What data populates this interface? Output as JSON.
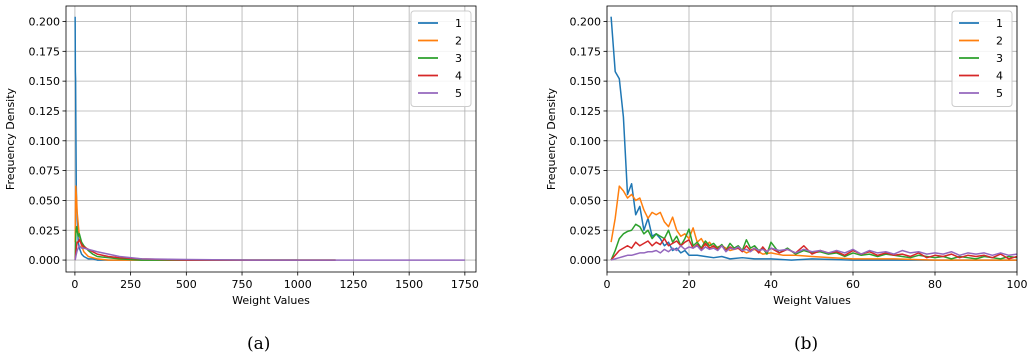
{
  "chart_data": [
    {
      "type": "line",
      "caption": "(a)",
      "xlabel": "Weight Values",
      "ylabel": "Frequency Density",
      "xlim": [
        -40,
        1800
      ],
      "ylim": [
        -0.01,
        0.213
      ],
      "xticks": [
        0,
        250,
        500,
        750,
        1000,
        1250,
        1500,
        1750
      ],
      "yticks": [
        0.0,
        0.025,
        0.05,
        0.075,
        0.1,
        0.125,
        0.15,
        0.175,
        0.2
      ],
      "grid": true,
      "legend_position": "top-right",
      "series": [
        {
          "name": "1",
          "color": "#1f77b4",
          "x": [
            1,
            2,
            3,
            4,
            6,
            8,
            10,
            15,
            20,
            30,
            40,
            60,
            80,
            100,
            150,
            200,
            300,
            500,
            800,
            1000
          ],
          "values": [
            0.204,
            0.158,
            0.152,
            0.12,
            0.063,
            0.045,
            0.035,
            0.015,
            0.01,
            0.005,
            0.003,
            0.001,
            0.001,
            0.0,
            0.0,
            0.0,
            0.0,
            0.0,
            0.0,
            0.0
          ]
        },
        {
          "name": "2",
          "color": "#ff7f0e",
          "x": [
            1,
            2,
            4,
            6,
            8,
            10,
            15,
            20,
            30,
            40,
            60,
            80,
            100,
            150,
            200,
            300,
            500,
            800,
            1170
          ],
          "values": [
            0.015,
            0.035,
            0.062,
            0.056,
            0.05,
            0.04,
            0.03,
            0.02,
            0.012,
            0.007,
            0.003,
            0.002,
            0.001,
            0.0,
            0.0,
            0.0,
            0.0,
            0.0,
            0.0
          ]
        },
        {
          "name": "3",
          "color": "#2ca02c",
          "x": [
            1,
            3,
            5,
            8,
            10,
            15,
            20,
            30,
            40,
            60,
            80,
            100,
            150,
            200,
            300,
            500,
            800,
            1170
          ],
          "values": [
            0.0,
            0.015,
            0.025,
            0.028,
            0.025,
            0.02,
            0.022,
            0.015,
            0.012,
            0.008,
            0.005,
            0.003,
            0.002,
            0.001,
            0.0,
            0.0,
            0.0,
            0.0
          ]
        },
        {
          "name": "4",
          "color": "#d62728",
          "x": [
            1,
            5,
            10,
            15,
            20,
            30,
            40,
            60,
            80,
            100,
            150,
            200,
            300,
            500,
            800,
            1170
          ],
          "values": [
            0.0,
            0.008,
            0.015,
            0.015,
            0.017,
            0.013,
            0.011,
            0.009,
            0.007,
            0.005,
            0.003,
            0.002,
            0.001,
            0.0,
            0.0,
            0.0
          ]
        },
        {
          "name": "5",
          "color": "#9467bd",
          "x": [
            1,
            5,
            10,
            20,
            30,
            40,
            60,
            80,
            100,
            150,
            200,
            300,
            500,
            800,
            1200,
            1750
          ],
          "values": [
            0.0,
            0.004,
            0.008,
            0.012,
            0.01,
            0.01,
            0.009,
            0.008,
            0.007,
            0.005,
            0.003,
            0.001,
            0.0005,
            0.0,
            0.0,
            0.0
          ]
        }
      ]
    },
    {
      "type": "line",
      "caption": "(b)",
      "xlabel": "Weight Values",
      "ylabel": "Frequency Density",
      "xlim": [
        0,
        100
      ],
      "ylim": [
        -0.01,
        0.213
      ],
      "xticks": [
        0,
        20,
        40,
        60,
        80,
        100
      ],
      "yticks": [
        0.0,
        0.025,
        0.05,
        0.075,
        0.1,
        0.125,
        0.15,
        0.175,
        0.2
      ],
      "grid": true,
      "legend_position": "top-right",
      "series": [
        {
          "name": "1",
          "color": "#1f77b4",
          "x": [
            1,
            2,
            3,
            4,
            5,
            6,
            7,
            8,
            9,
            10,
            11,
            12,
            13,
            14,
            15,
            16,
            17,
            18,
            19,
            20,
            22,
            24,
            26,
            28,
            30,
            33,
            36,
            40,
            45,
            50,
            60,
            70,
            80,
            90,
            100
          ],
          "values": [
            0.204,
            0.158,
            0.152,
            0.12,
            0.055,
            0.064,
            0.038,
            0.045,
            0.025,
            0.035,
            0.02,
            0.022,
            0.018,
            0.012,
            0.015,
            0.008,
            0.01,
            0.006,
            0.008,
            0.004,
            0.004,
            0.003,
            0.002,
            0.003,
            0.001,
            0.002,
            0.001,
            0.001,
            0.0,
            0.001,
            0.0,
            0.0,
            0.0,
            0.0,
            0.0
          ]
        },
        {
          "name": "2",
          "color": "#ff7f0e",
          "x": [
            1,
            2,
            3,
            4,
            5,
            6,
            7,
            8,
            9,
            10,
            11,
            12,
            13,
            14,
            15,
            16,
            17,
            18,
            19,
            20,
            21,
            22,
            23,
            24,
            25,
            26,
            28,
            30,
            32,
            34,
            36,
            38,
            40,
            43,
            46,
            50,
            55,
            60,
            70,
            80,
            90,
            100
          ],
          "values": [
            0.015,
            0.035,
            0.062,
            0.058,
            0.052,
            0.055,
            0.05,
            0.052,
            0.042,
            0.035,
            0.04,
            0.038,
            0.04,
            0.032,
            0.028,
            0.036,
            0.025,
            0.02,
            0.022,
            0.018,
            0.027,
            0.015,
            0.018,
            0.012,
            0.015,
            0.01,
            0.012,
            0.008,
            0.01,
            0.006,
            0.009,
            0.005,
            0.006,
            0.004,
            0.004,
            0.003,
            0.002,
            0.001,
            0.001,
            0.0,
            0.0,
            0.0
          ]
        },
        {
          "name": "3",
          "color": "#2ca02c",
          "x": [
            1,
            2,
            3,
            4,
            5,
            6,
            7,
            8,
            9,
            10,
            11,
            12,
            13,
            14,
            15,
            16,
            17,
            18,
            19,
            20,
            21,
            22,
            23,
            24,
            25,
            26,
            27,
            28,
            29,
            30,
            31,
            32,
            33,
            34,
            35,
            36,
            37,
            38,
            39,
            40,
            42,
            44,
            46,
            48,
            50,
            52,
            54,
            56,
            58,
            60,
            62,
            64,
            66,
            68,
            70,
            72,
            74,
            76,
            78,
            80,
            82,
            84,
            86,
            88,
            90,
            92,
            94,
            96,
            98,
            100
          ],
          "values": [
            0.0,
            0.008,
            0.018,
            0.022,
            0.024,
            0.025,
            0.03,
            0.028,
            0.022,
            0.025,
            0.018,
            0.022,
            0.02,
            0.018,
            0.025,
            0.015,
            0.02,
            0.012,
            0.018,
            0.026,
            0.012,
            0.015,
            0.01,
            0.016,
            0.012,
            0.014,
            0.01,
            0.013,
            0.008,
            0.014,
            0.01,
            0.012,
            0.008,
            0.017,
            0.01,
            0.012,
            0.008,
            0.01,
            0.005,
            0.015,
            0.006,
            0.01,
            0.005,
            0.008,
            0.006,
            0.007,
            0.005,
            0.006,
            0.003,
            0.006,
            0.004,
            0.005,
            0.003,
            0.005,
            0.004,
            0.003,
            0.002,
            0.004,
            0.003,
            0.002,
            0.003,
            0.001,
            0.003,
            0.002,
            0.001,
            0.003,
            0.002,
            0.001,
            0.003,
            0.002
          ]
        },
        {
          "name": "4",
          "color": "#d62728",
          "x": [
            1,
            2,
            3,
            4,
            5,
            6,
            7,
            8,
            9,
            10,
            11,
            12,
            13,
            14,
            15,
            16,
            17,
            18,
            19,
            20,
            21,
            22,
            23,
            24,
            25,
            26,
            27,
            28,
            29,
            30,
            31,
            32,
            33,
            34,
            35,
            36,
            37,
            38,
            39,
            40,
            42,
            44,
            46,
            48,
            50,
            52,
            54,
            56,
            58,
            60,
            62,
            64,
            66,
            68,
            70,
            72,
            74,
            76,
            78,
            80,
            82,
            84,
            86,
            88,
            90,
            92,
            94,
            96,
            98,
            100
          ],
          "values": [
            0.0,
            0.004,
            0.008,
            0.01,
            0.012,
            0.01,
            0.015,
            0.012,
            0.014,
            0.016,
            0.012,
            0.015,
            0.013,
            0.018,
            0.012,
            0.014,
            0.016,
            0.012,
            0.015,
            0.017,
            0.01,
            0.013,
            0.009,
            0.014,
            0.01,
            0.012,
            0.009,
            0.012,
            0.008,
            0.011,
            0.009,
            0.01,
            0.007,
            0.012,
            0.008,
            0.01,
            0.006,
            0.011,
            0.007,
            0.01,
            0.006,
            0.009,
            0.006,
            0.012,
            0.005,
            0.008,
            0.006,
            0.007,
            0.004,
            0.008,
            0.005,
            0.007,
            0.004,
            0.006,
            0.004,
            0.005,
            0.003,
            0.006,
            0.002,
            0.004,
            0.003,
            0.005,
            0.002,
            0.004,
            0.003,
            0.004,
            0.002,
            0.005,
            0.001,
            0.003
          ]
        },
        {
          "name": "5",
          "color": "#9467bd",
          "x": [
            1,
            2,
            3,
            4,
            5,
            6,
            7,
            8,
            9,
            10,
            11,
            12,
            13,
            14,
            15,
            16,
            17,
            18,
            19,
            20,
            21,
            22,
            23,
            24,
            25,
            26,
            27,
            28,
            29,
            30,
            31,
            32,
            33,
            34,
            35,
            36,
            37,
            38,
            39,
            40,
            42,
            44,
            46,
            48,
            50,
            52,
            54,
            56,
            58,
            60,
            62,
            64,
            66,
            68,
            70,
            72,
            74,
            76,
            78,
            80,
            82,
            84,
            86,
            88,
            90,
            92,
            94,
            96,
            98,
            100
          ],
          "values": [
            0.0,
            0.001,
            0.002,
            0.003,
            0.004,
            0.004,
            0.005,
            0.006,
            0.006,
            0.007,
            0.007,
            0.008,
            0.006,
            0.009,
            0.007,
            0.01,
            0.008,
            0.012,
            0.009,
            0.011,
            0.01,
            0.012,
            0.008,
            0.011,
            0.009,
            0.01,
            0.008,
            0.012,
            0.007,
            0.01,
            0.009,
            0.011,
            0.008,
            0.009,
            0.007,
            0.01,
            0.008,
            0.009,
            0.007,
            0.01,
            0.008,
            0.009,
            0.006,
            0.009,
            0.007,
            0.008,
            0.006,
            0.008,
            0.006,
            0.009,
            0.005,
            0.008,
            0.006,
            0.007,
            0.005,
            0.008,
            0.006,
            0.007,
            0.005,
            0.006,
            0.005,
            0.007,
            0.004,
            0.006,
            0.005,
            0.006,
            0.004,
            0.006,
            0.004,
            0.005
          ]
        }
      ]
    }
  ]
}
